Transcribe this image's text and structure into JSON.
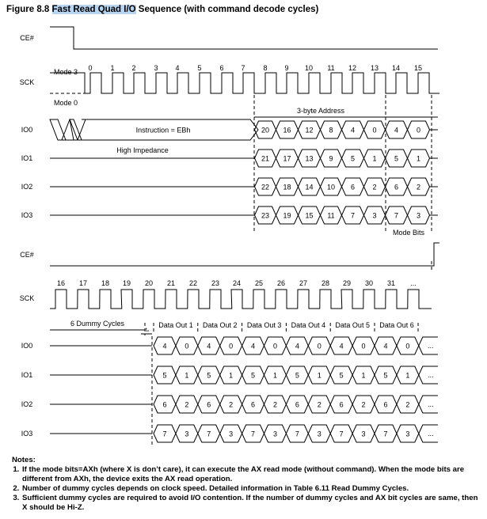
{
  "title": {
    "prefix": "Figure 8.8 ",
    "highlight": "Fast Read Quad I/O",
    "suffix": " Sequence (with command decode cycles)"
  },
  "top": {
    "signals": [
      "CE#",
      "SCK",
      "IO0",
      "IO1",
      "IO2",
      "IO3"
    ],
    "mode3": "Mode 3",
    "mode0": "Mode 0",
    "clocks": [
      "0",
      "1",
      "2",
      "3",
      "4",
      "5",
      "6",
      "7",
      "8",
      "9",
      "10",
      "11",
      "12",
      "13",
      "14",
      "15"
    ],
    "instruction": "Instruction = EBh",
    "high_impedance": "High Impedance",
    "address_label": "3-byte Address",
    "mode_bits_label": "Mode Bits",
    "io_data": [
      [
        "20",
        "16",
        "12",
        "8",
        "4",
        "0",
        "4",
        "0"
      ],
      [
        "21",
        "17",
        "13",
        "9",
        "5",
        "1",
        "5",
        "1"
      ],
      [
        "22",
        "18",
        "14",
        "10",
        "6",
        "2",
        "6",
        "2"
      ],
      [
        "23",
        "19",
        "15",
        "11",
        "7",
        "3",
        "7",
        "3"
      ]
    ]
  },
  "bottom": {
    "signals": [
      "CE#",
      "SCK",
      "IO0",
      "IO1",
      "IO2",
      "IO3"
    ],
    "clocks": [
      "16",
      "17",
      "18",
      "19",
      "20",
      "21",
      "22",
      "23",
      "24",
      "25",
      "26",
      "27",
      "28",
      "29",
      "30",
      "31",
      "..."
    ],
    "dummy_label": "6 Dummy Cycles",
    "tv_label": "tᵥ",
    "data_out_labels": [
      "Data Out 1",
      "Data Out 2",
      "Data Out 3",
      "Data Out 4",
      "Data Out 5",
      "Data Out 6"
    ],
    "io_data": [
      [
        "4",
        "0",
        "4",
        "0",
        "4",
        "0",
        "4",
        "0",
        "4",
        "0",
        "4",
        "0"
      ],
      [
        "5",
        "1",
        "5",
        "1",
        "5",
        "1",
        "5",
        "1",
        "5",
        "1",
        "5",
        "1"
      ],
      [
        "6",
        "2",
        "6",
        "2",
        "6",
        "2",
        "6",
        "2",
        "6",
        "2",
        "6",
        "2"
      ],
      [
        "7",
        "3",
        "7",
        "3",
        "7",
        "3",
        "7",
        "3",
        "7",
        "3",
        "7",
        "3"
      ]
    ],
    "ellipsis": "..."
  },
  "notes": {
    "heading": "Notes:",
    "items": [
      "If the mode bits=AXh (where X is don’t care), it can execute the AX read mode (without command). When the mode bits are different from AXh, the device exits the AX read operation.",
      "Number of dummy cycles depends on clock speed. Detailed information in Table 6.11 Read Dummy Cycles.",
      "Sufficient dummy cycles are required to avoid I/O contention. If the number of dummy cycles and AX bit cycles are same, then X should be Hi-Z."
    ]
  }
}
